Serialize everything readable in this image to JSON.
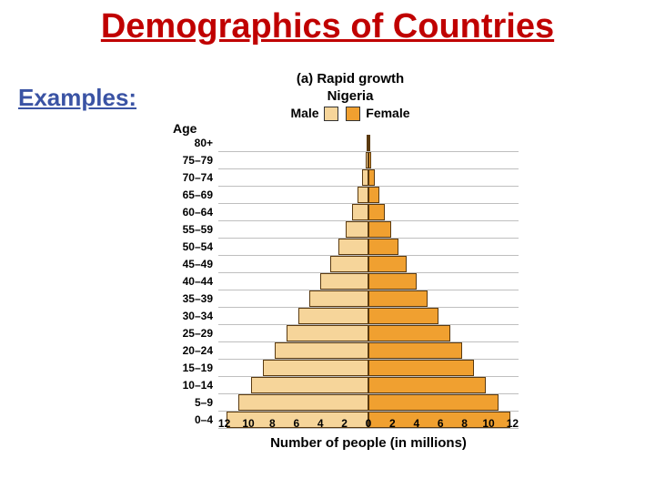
{
  "title": "Demographics of Countries",
  "subtitle": "Examples:",
  "chart": {
    "type": "population-pyramid",
    "title_a": "(a) Rapid growth",
    "title_b": "Nigeria",
    "legend": {
      "male": "Male",
      "female": "Female"
    },
    "male_color": "#f6d59a",
    "female_color": "#f0a030",
    "border_color": "#5a3a10",
    "grid_color": "#bfbfbf",
    "background_color": "#ffffff",
    "age_header": "Age",
    "x_title": "Number of people (in millions)",
    "x_max": 12.5,
    "x_ticks": [
      12,
      10,
      8,
      6,
      4,
      2,
      0,
      2,
      4,
      6,
      8,
      10,
      12
    ],
    "rows": [
      {
        "label": "80+",
        "male": 0.15,
        "female": 0.15
      },
      {
        "label": "75–79",
        "male": 0.25,
        "female": 0.25
      },
      {
        "label": "70–74",
        "male": 0.5,
        "female": 0.5
      },
      {
        "label": "65–69",
        "male": 0.9,
        "female": 0.9
      },
      {
        "label": "60–64",
        "male": 1.4,
        "female": 1.4
      },
      {
        "label": "55–59",
        "male": 1.9,
        "female": 1.9
      },
      {
        "label": "50–54",
        "male": 2.5,
        "female": 2.5
      },
      {
        "label": "45–49",
        "male": 3.2,
        "female": 3.2
      },
      {
        "label": "40–44",
        "male": 4.0,
        "female": 4.0
      },
      {
        "label": "35–39",
        "male": 4.9,
        "female": 4.9
      },
      {
        "label": "30–34",
        "male": 5.8,
        "female": 5.8
      },
      {
        "label": "25–29",
        "male": 6.8,
        "female": 6.8
      },
      {
        "label": "20–24",
        "male": 7.8,
        "female": 7.8
      },
      {
        "label": "15–19",
        "male": 8.8,
        "female": 8.8
      },
      {
        "label": "10–14",
        "male": 9.8,
        "female": 9.8
      },
      {
        "label": "5–9",
        "male": 10.8,
        "female": 10.8
      },
      {
        "label": "0–4",
        "male": 11.8,
        "female": 11.8
      }
    ]
  }
}
